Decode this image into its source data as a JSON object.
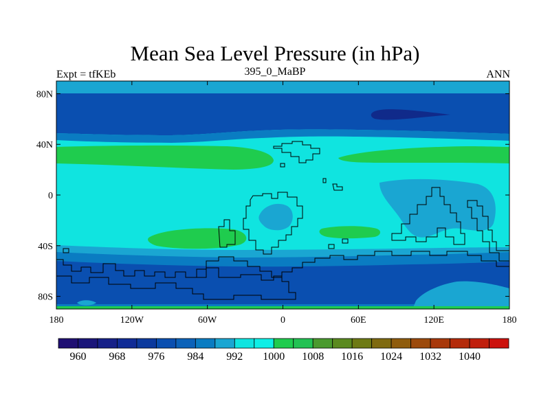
{
  "chart_data": {
    "type": "filled-contour-map",
    "title": "Mean Sea Level Pressure (in hPa)",
    "left_label": "Expt = tfKEb",
    "center_label": "395_0_MaBP",
    "right_label": "ANN",
    "x_ticks": [
      "180",
      "120W",
      "60W",
      "0",
      "60E",
      "120E",
      "180"
    ],
    "x_tick_values": [
      -180,
      -120,
      -60,
      0,
      60,
      120,
      180
    ],
    "y_ticks": [
      "80N",
      "40N",
      "0",
      "40S",
      "80S"
    ],
    "y_tick_values": [
      80,
      40,
      0,
      -40,
      -80
    ],
    "xlim": [
      -180,
      180
    ],
    "ylim": [
      -90,
      90
    ],
    "colorbar": {
      "colors": [
        "#1f0f73",
        "#1a157a",
        "#162088",
        "#102b96",
        "#0c3a9e",
        "#0a4fb0",
        "#0b62b9",
        "#0a7cc2",
        "#1aa6d2",
        "#10e4e0",
        "#0fefe6",
        "#1fcc4e",
        "#22c253",
        "#4a9a2e",
        "#5b8a1f",
        "#6e7a14",
        "#7f6a10",
        "#8f5c0c",
        "#9c4a0b",
        "#a8380a",
        "#b42a0a",
        "#c01f0c",
        "#cc120d"
      ],
      "tick_labels": [
        "960",
        "968",
        "976",
        "984",
        "992",
        "1000",
        "1008",
        "1016",
        "1024",
        "1032",
        "1040"
      ],
      "tick_edge_index": [
        1,
        3,
        5,
        7,
        9,
        11,
        13,
        15,
        17,
        19,
        21
      ]
    },
    "fill_colors": {
      "lt_976": "#0d2f9a",
      "976_984": "#0a4fb0",
      "984_992": "#0a7cc2",
      "992_1000": "#1aa6d2",
      "1000_1008": "#10e4e0",
      "1008_1016": "#1fcc4e",
      "min_low": "#102a8a"
    }
  }
}
